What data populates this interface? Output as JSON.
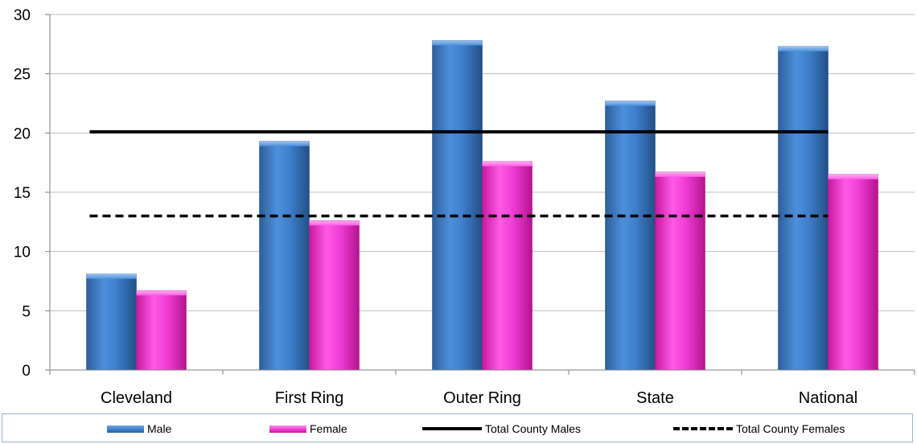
{
  "chart_data": {
    "type": "bar",
    "title": "",
    "xlabel": "",
    "ylabel": "",
    "ylim": [
      0,
      30
    ],
    "yticks": [
      0,
      5,
      10,
      15,
      20,
      25,
      30
    ],
    "grid": true,
    "categories": [
      "Cleveland",
      "First Ring",
      "Outer Ring",
      "State",
      "National"
    ],
    "series": [
      {
        "name": "Male",
        "type": "bar",
        "color": "#3d7fc9",
        "values": [
          8.1,
          19.3,
          27.8,
          22.7,
          27.3
        ]
      },
      {
        "name": "Female",
        "type": "bar",
        "color": "#f03bd2",
        "values": [
          6.7,
          12.6,
          17.6,
          16.7,
          16.5
        ]
      },
      {
        "name": "Total County Males",
        "type": "line",
        "style": "solid",
        "color": "#000000",
        "value": 20.1
      },
      {
        "name": "Total County Females",
        "type": "line",
        "style": "dashed",
        "color": "#000000",
        "value": 13.0
      }
    ],
    "legend_position": "bottom"
  }
}
